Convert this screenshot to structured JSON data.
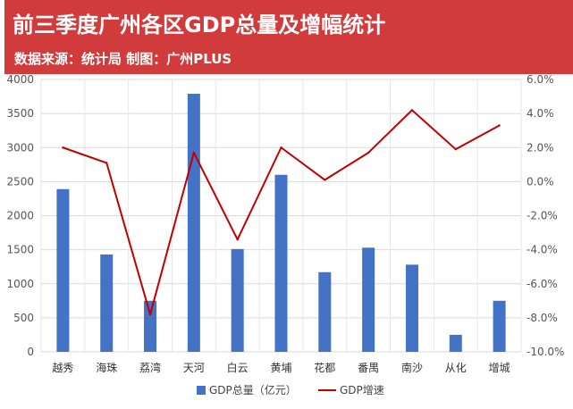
{
  "header": {
    "title": "前三季度广州各区GDP总量及增幅统计",
    "subtitle": "数据来源：统计局   制图：广州PLUS"
  },
  "colors": {
    "banner": "#d23b3b",
    "bar": "#4472c4",
    "line": "#c00000"
  },
  "chart_data": {
    "type": "bar",
    "categories": [
      "越秀",
      "海珠",
      "荔湾",
      "天河",
      "白云",
      "黄埔",
      "花都",
      "番禺",
      "南沙",
      "从化",
      "增城"
    ],
    "series": [
      {
        "name": "GDP总量（亿元）",
        "type": "bar",
        "axis": "left",
        "values": [
          2390,
          1430,
          750,
          3790,
          1510,
          2600,
          1170,
          1530,
          1280,
          250,
          750
        ]
      },
      {
        "name": "GDP增速",
        "type": "line",
        "axis": "right",
        "values": [
          2.0,
          1.1,
          -7.8,
          1.7,
          -3.4,
          2.0,
          0.1,
          1.7,
          4.2,
          1.9,
          3.3
        ]
      }
    ],
    "y_left": {
      "range": [
        0,
        4000
      ],
      "ticks": [
        "0",
        "500",
        "1000",
        "1500",
        "2000",
        "2500",
        "3000",
        "3500",
        "4000"
      ]
    },
    "y_right": {
      "range": [
        -10,
        6
      ],
      "ticks": [
        "-10.0%",
        "-8.0%",
        "-6.0%",
        "-4.0%",
        "-2.0%",
        "0.0%",
        "2.0%",
        "4.0%",
        "6.0%"
      ]
    },
    "grid": true,
    "legend_position": "bottom"
  }
}
